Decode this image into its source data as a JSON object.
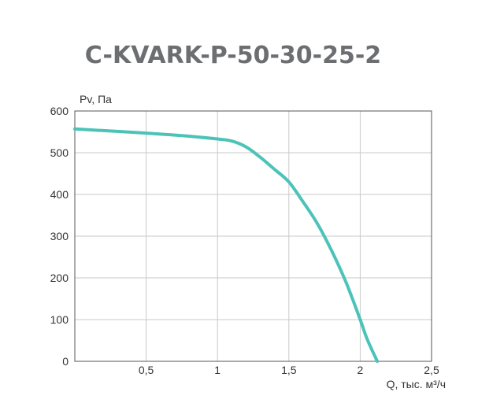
{
  "chart_data": {
    "type": "line",
    "title": "C-KVARK-P-50-30-25-2",
    "xlabel": "Q, тыс. м³/ч",
    "ylabel": "Pv, Па",
    "xlim": [
      0,
      2.5
    ],
    "ylim": [
      0,
      600
    ],
    "x_ticks": [
      {
        "value": 0.5,
        "label": "0,5"
      },
      {
        "value": 1,
        "label": "1"
      },
      {
        "value": 1.5,
        "label": "1,5"
      },
      {
        "value": 2,
        "label": "2"
      },
      {
        "value": 2.5,
        "label": "2,5"
      }
    ],
    "y_ticks": [
      {
        "value": 0,
        "label": "0"
      },
      {
        "value": 100,
        "label": "100"
      },
      {
        "value": 200,
        "label": "200"
      },
      {
        "value": 300,
        "label": "300"
      },
      {
        "value": 400,
        "label": "400"
      },
      {
        "value": 500,
        "label": "500"
      },
      {
        "value": 600,
        "label": "600"
      }
    ],
    "grid": true,
    "series": [
      {
        "color": "#4cc3b9",
        "x": [
          0,
          0.25,
          0.5,
          0.75,
          1.0,
          1.1,
          1.2,
          1.3,
          1.4,
          1.5,
          1.6,
          1.7,
          1.8,
          1.9,
          2.0,
          2.05,
          2.12
        ],
        "y": [
          557,
          552,
          547,
          541,
          533,
          528,
          514,
          489,
          460,
          430,
          382,
          330,
          265,
          190,
          100,
          52,
          0
        ]
      }
    ]
  }
}
